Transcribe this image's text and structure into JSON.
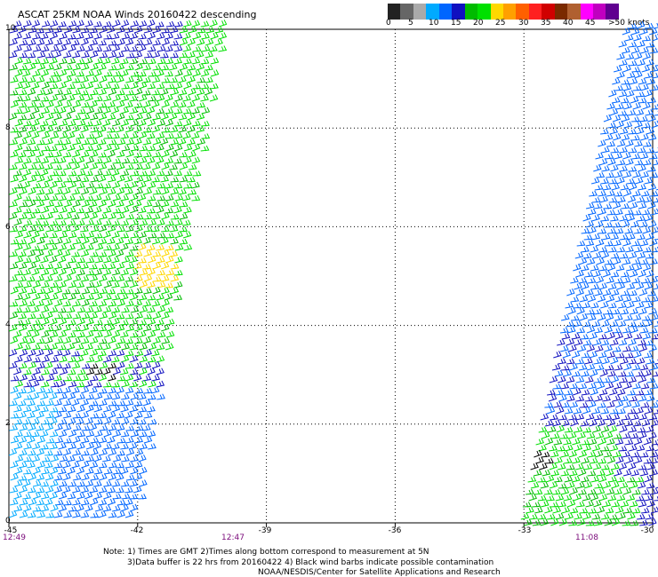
{
  "title": "ASCAT 25KM NOAA Winds 20160422 descending",
  "legend": {
    "colors": [
      "#222222",
      "#666666",
      "#aaaaaa",
      "#00aaff",
      "#0066ff",
      "#1010c0",
      "#00bb00",
      "#00e000",
      "#ffd800",
      "#ffa000",
      "#ff6000",
      "#ff2020",
      "#d00000",
      "#7a2a00",
      "#b06030",
      "#ff00ff",
      "#c000c0",
      "#600090"
    ],
    "labels": [
      "0",
      "5",
      "10",
      "15",
      "20",
      "25",
      "30",
      "35",
      "40",
      "45",
      ">50 knots"
    ]
  },
  "map": {
    "lat_ticks": [
      "10",
      "8",
      "6",
      "4",
      "2",
      "0"
    ],
    "lon_ticks": [
      "-45",
      "-42",
      "-39",
      "-36",
      "-33",
      "-30"
    ],
    "time_ticks": [
      "12:49",
      "12:47",
      "11:08"
    ]
  },
  "notes": {
    "line1": "Note: 1) Times are GMT 2)Times along bottom correspond to measurement at 5N",
    "line2": "3)Data buffer is 22 hrs from 20160422 4) Black wind barbs indicate possible contamination",
    "line3": "NOAA/NESDIS/Center for Satellite Applications and Research"
  },
  "barb_colors": {
    "dark_blue": "#1010c0",
    "blue": "#0066ff",
    "light_blue": "#00aaff",
    "dark_green": "#00bb00",
    "green": "#00e000",
    "yellow": "#ffd800",
    "black": "#000000"
  }
}
